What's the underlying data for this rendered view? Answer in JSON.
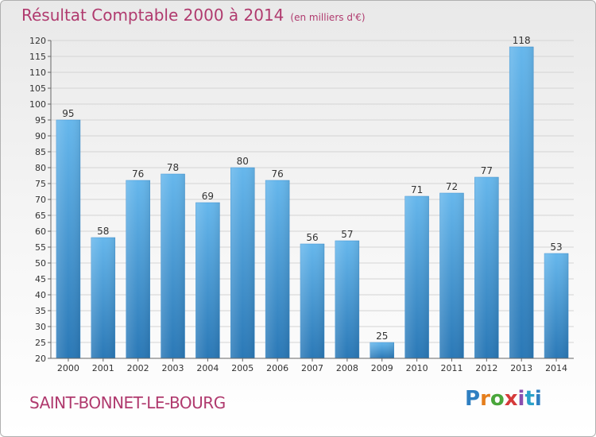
{
  "title": "Résultat Comptable 2000 à 2014",
  "subtitle": "(en milliers d'€)",
  "town": "SAINT-BONNET-LE-BOURG",
  "logo": {
    "letters": [
      "P",
      "r",
      "o",
      "x",
      "i",
      "t",
      "i"
    ]
  },
  "colors": {
    "title": "#b03a6e",
    "bar_light": "#62b3ea",
    "bar_dark": "#2a7ab8",
    "grid": "#d4d4d4"
  },
  "chart_data": {
    "type": "bar",
    "title": "Résultat Comptable 2000 à 2014",
    "categories": [
      "2000",
      "2001",
      "2002",
      "2003",
      "2004",
      "2005",
      "2006",
      "2007",
      "2008",
      "2009",
      "2010",
      "2011",
      "2012",
      "2013",
      "2014"
    ],
    "values": [
      95,
      58,
      76,
      78,
      69,
      80,
      76,
      56,
      57,
      25,
      71,
      72,
      77,
      118,
      53
    ],
    "data_labels": [
      "95",
      "58",
      "76",
      "78",
      "69",
      "80",
      "76",
      "56",
      "57",
      "25",
      "71",
      "72",
      "77",
      "118",
      "53"
    ],
    "yticks": [
      20,
      25,
      30,
      35,
      40,
      45,
      50,
      55,
      60,
      65,
      70,
      75,
      80,
      85,
      90,
      95,
      100,
      105,
      110,
      115,
      120
    ],
    "ylim": [
      20,
      120
    ],
    "grid": true,
    "xlabel": "",
    "ylabel": ""
  }
}
